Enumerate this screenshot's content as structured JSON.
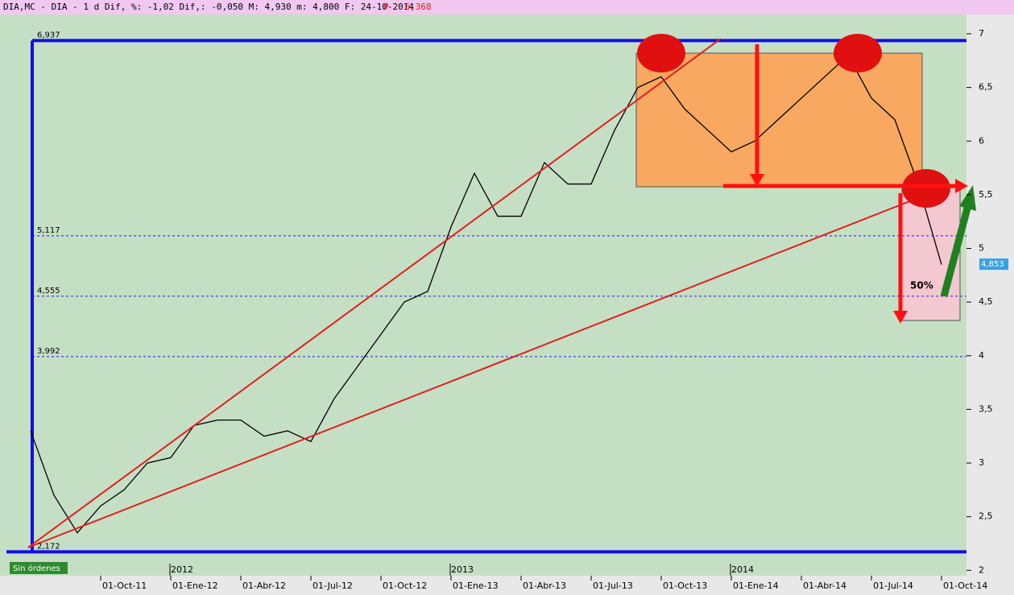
{
  "header": {
    "info": "DIA,MC - DIA - 1 d Dif, %: -1,02 Dif,: -0,050 M: 4,930 m: 4,800 F: 24-10-2014",
    "price": "P : 6,368",
    "button": "Sin órdenes"
  },
  "chart_data": {
    "type": "line",
    "categories": [
      null,
      null,
      null,
      "01-Oct-11",
      null,
      null,
      "01-Ene-12",
      null,
      null,
      "01-Abr-12",
      null,
      null,
      "01-Jul-12",
      null,
      null,
      "01-Oct-12",
      null,
      null,
      "01-Ene-13",
      null,
      null,
      "01-Abr-13",
      null,
      null,
      "01-Jul-13",
      null,
      null,
      "01-Oct-13",
      null,
      null,
      "01-Ene-14",
      null,
      null,
      "01-Abr-14",
      null,
      null,
      "01-Jul-14",
      null,
      null,
      "01-Oct-14"
    ],
    "years": [
      {
        "index": 6,
        "label": "2012"
      },
      {
        "index": 18,
        "label": "2013"
      },
      {
        "index": 30,
        "label": "2014"
      }
    ],
    "series": [
      {
        "name": "DIA",
        "color": "#000000",
        "values": [
          3.3,
          2.7,
          2.35,
          2.6,
          2.75,
          3.0,
          3.05,
          3.35,
          3.4,
          3.4,
          3.25,
          3.3,
          3.2,
          3.6,
          3.9,
          4.2,
          4.5,
          4.6,
          5.2,
          5.7,
          5.3,
          5.3,
          5.8,
          5.6,
          5.6,
          6.1,
          6.5,
          6.6,
          6.3,
          6.1,
          5.9,
          6.0,
          6.2,
          6.4,
          6.6,
          6.8,
          6.4,
          6.2,
          5.6,
          4.85
        ]
      }
    ],
    "ylim": [
      1.95,
      7.18
    ],
    "yticks": [
      {
        "value": 2,
        "label": "2"
      },
      {
        "value": 2.5,
        "label": "2,5"
      },
      {
        "value": 3,
        "label": "3"
      },
      {
        "value": 3.5,
        "label": "3,5"
      },
      {
        "value": 4,
        "label": "4"
      },
      {
        "value": 4.5,
        "label": "4,5"
      },
      {
        "value": 5,
        "label": "5"
      },
      {
        "value": 5.5,
        "label": "5,5"
      },
      {
        "value": 6,
        "label": "6"
      },
      {
        "value": 6.5,
        "label": "6,5"
      },
      {
        "value": 7,
        "label": "7"
      }
    ],
    "levels": [
      {
        "value": 6.937,
        "label": "6,937"
      },
      {
        "value": 5.117,
        "label": "5,117"
      },
      {
        "value": 4.555,
        "label": "4,555"
      },
      {
        "value": 3.992,
        "label": "3,992"
      },
      {
        "value": 2.172,
        "label": "2,172"
      }
    ],
    "last_price": {
      "value": 4.853,
      "label": "4,853"
    },
    "annotation": "50%"
  }
}
